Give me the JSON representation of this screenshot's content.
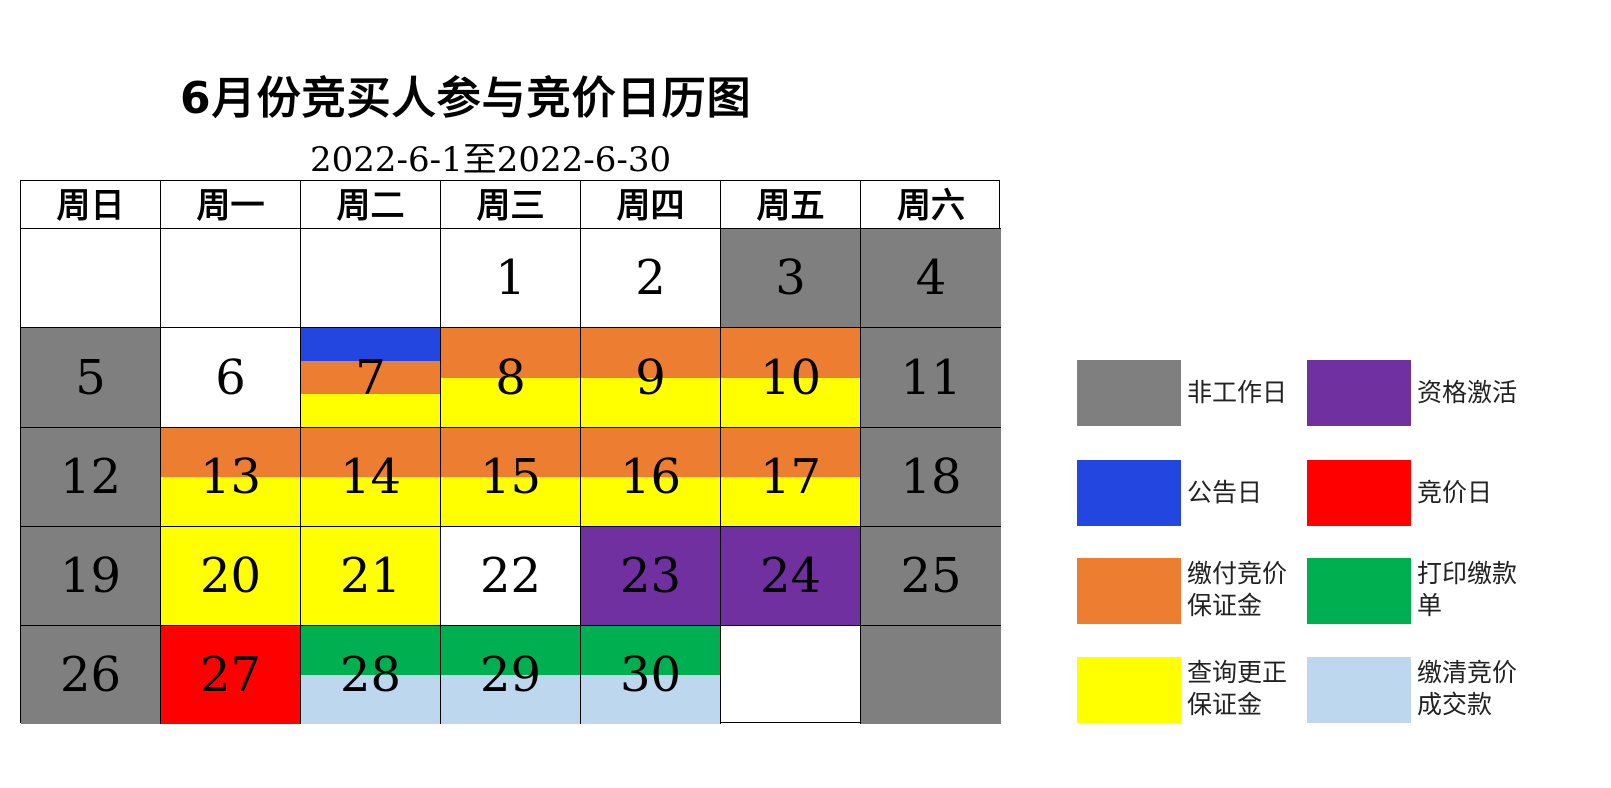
{
  "chart_data": {
    "type": "table",
    "title": "6月份竞买人参与竞价日历图",
    "subtitle": "2022-6-1至2022-6-30",
    "weekdays": [
      "周日",
      "周一",
      "周二",
      "周三",
      "周四",
      "周五",
      "周六"
    ],
    "categories": {
      "nonwork": {
        "label": "非工作日",
        "color": "#7f7f7f"
      },
      "activate": {
        "label": "资格激活",
        "color": "#7030a0"
      },
      "announce": {
        "label": "公告日",
        "color": "#2346e0"
      },
      "bid": {
        "label": "竞价日",
        "color": "#ff0000"
      },
      "deposit": {
        "label": "缴付竞价保证金",
        "color": "#ed7d31"
      },
      "print": {
        "label": "打印缴款单",
        "color": "#00b050"
      },
      "query": {
        "label": "查询更正保证金",
        "color": "#ffff00"
      },
      "pay": {
        "label": "缴清竞价成交款",
        "color": "#bdd7ee"
      }
    },
    "legend_order": [
      "nonwork",
      "activate",
      "announce",
      "bid",
      "deposit",
      "print",
      "query",
      "pay"
    ],
    "weeks": [
      [
        {
          "day": ""
        },
        {
          "day": ""
        },
        {
          "day": ""
        },
        {
          "day": "1"
        },
        {
          "day": "2"
        },
        {
          "day": "3",
          "cats": [
            "nonwork"
          ]
        },
        {
          "day": "4",
          "cats": [
            "nonwork"
          ]
        }
      ],
      [
        {
          "day": "5",
          "cats": [
            "nonwork"
          ]
        },
        {
          "day": "6"
        },
        {
          "day": "7",
          "cats": [
            "announce",
            "deposit",
            "query"
          ]
        },
        {
          "day": "8",
          "cats": [
            "deposit",
            "query"
          ]
        },
        {
          "day": "9",
          "cats": [
            "deposit",
            "query"
          ]
        },
        {
          "day": "10",
          "cats": [
            "deposit",
            "query"
          ]
        },
        {
          "day": "11",
          "cats": [
            "nonwork"
          ]
        }
      ],
      [
        {
          "day": "12",
          "cats": [
            "nonwork"
          ]
        },
        {
          "day": "13",
          "cats": [
            "deposit",
            "query"
          ]
        },
        {
          "day": "14",
          "cats": [
            "deposit",
            "query"
          ]
        },
        {
          "day": "15",
          "cats": [
            "deposit",
            "query"
          ]
        },
        {
          "day": "16",
          "cats": [
            "deposit",
            "query"
          ]
        },
        {
          "day": "17",
          "cats": [
            "deposit",
            "query"
          ]
        },
        {
          "day": "18",
          "cats": [
            "nonwork"
          ]
        }
      ],
      [
        {
          "day": "19",
          "cats": [
            "nonwork"
          ]
        },
        {
          "day": "20",
          "cats": [
            "query"
          ]
        },
        {
          "day": "21",
          "cats": [
            "query"
          ]
        },
        {
          "day": "22"
        },
        {
          "day": "23",
          "cats": [
            "activate"
          ]
        },
        {
          "day": "24",
          "cats": [
            "activate"
          ]
        },
        {
          "day": "25",
          "cats": [
            "nonwork"
          ]
        }
      ],
      [
        {
          "day": "26",
          "cats": [
            "nonwork"
          ]
        },
        {
          "day": "27",
          "cats": [
            "bid"
          ]
        },
        {
          "day": "28",
          "cats": [
            "print",
            "pay"
          ]
        },
        {
          "day": "29",
          "cats": [
            "print",
            "pay"
          ]
        },
        {
          "day": "30",
          "cats": [
            "print",
            "pay"
          ]
        },
        {
          "day": ""
        },
        {
          "day": "",
          "cats": [
            "nonwork"
          ]
        }
      ]
    ]
  }
}
